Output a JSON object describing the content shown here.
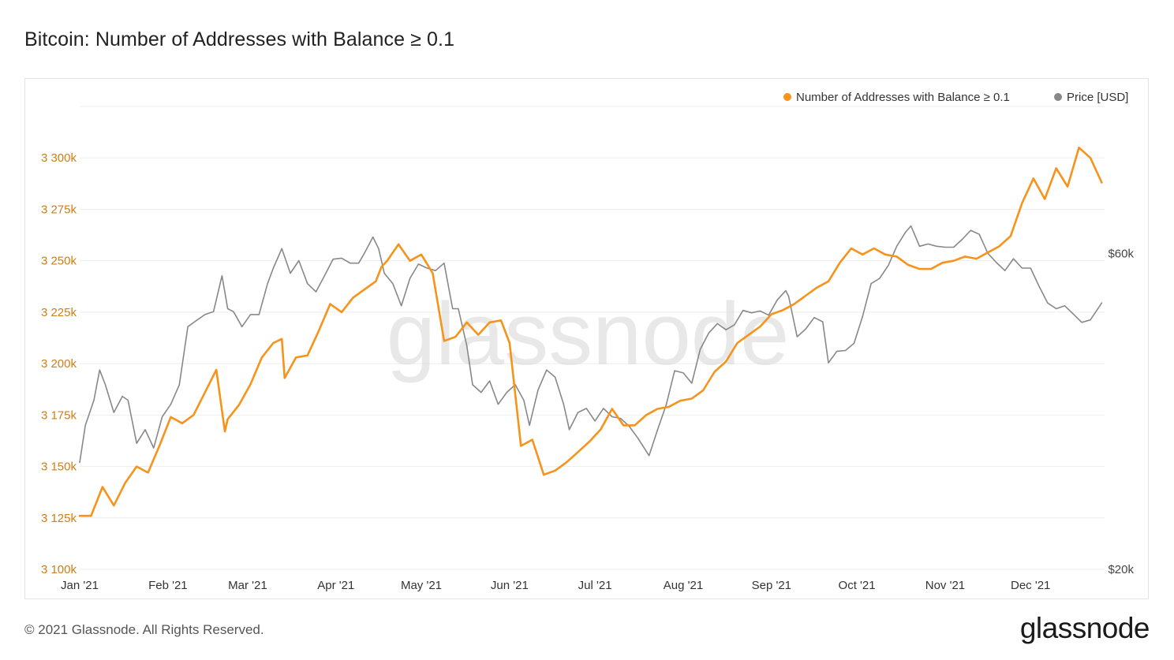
{
  "header": {
    "title": "Bitcoin: Number of Addresses with Balance ≥ 0.1"
  },
  "footer": {
    "copyright": "© 2021 Glassnode. All Rights Reserved.",
    "brand": "glassnode"
  },
  "watermark": "glassnode",
  "colors": {
    "addresses": "#f7931a",
    "price": "#888888",
    "left_axis_text": "#d07d14",
    "grid": "#eeeeee"
  },
  "chart_data": {
    "type": "line",
    "title": "Bitcoin: Number of Addresses with Balance ≥ 0.1",
    "x_ticks": [
      "Jan '21",
      "Feb '21",
      "Mar '21",
      "Apr '21",
      "May '21",
      "Jun '21",
      "Jul '21",
      "Aug '21",
      "Sep '21",
      "Oct '21",
      "Nov '21",
      "Dec '21"
    ],
    "x_range": [
      "2021-01-01",
      "2021-12-27"
    ],
    "left_axis": {
      "ticks": [
        "3 100k",
        "3 125k",
        "3 150k",
        "3 175k",
        "3 200k",
        "3 225k",
        "3 250k",
        "3 275k",
        "3 300k"
      ],
      "ylim": [
        3100000,
        3325000
      ]
    },
    "right_axis": {
      "scale": "log",
      "ticks": [
        "$20k",
        "$60k"
      ],
      "ylim": [
        20000,
        100000
      ]
    },
    "legend": {
      "placement": "top-right",
      "entries": [
        "Number of Addresses with Balance ≥ 0.1",
        "Price [USD]"
      ]
    },
    "series": [
      {
        "name": "Number of Addresses with Balance ≥ 0.1",
        "axis": "left",
        "x": [
          "2021-01-01",
          "2021-01-05",
          "2021-01-09",
          "2021-01-13",
          "2021-01-17",
          "2021-01-21",
          "2021-01-25",
          "2021-01-29",
          "2021-02-02",
          "2021-02-06",
          "2021-02-10",
          "2021-02-14",
          "2021-02-18",
          "2021-02-21",
          "2021-02-22",
          "2021-02-26",
          "2021-03-02",
          "2021-03-06",
          "2021-03-10",
          "2021-03-13",
          "2021-03-14",
          "2021-03-18",
          "2021-03-22",
          "2021-03-26",
          "2021-03-30",
          "2021-04-03",
          "2021-04-07",
          "2021-04-11",
          "2021-04-15",
          "2021-04-17",
          "2021-04-19",
          "2021-04-23",
          "2021-04-27",
          "2021-05-01",
          "2021-05-05",
          "2021-05-09",
          "2021-05-13",
          "2021-05-17",
          "2021-05-21",
          "2021-05-25",
          "2021-05-29",
          "2021-06-01",
          "2021-06-05",
          "2021-06-09",
          "2021-06-13",
          "2021-06-17",
          "2021-06-21",
          "2021-06-25",
          "2021-06-29",
          "2021-07-03",
          "2021-07-07",
          "2021-07-11",
          "2021-07-15",
          "2021-07-19",
          "2021-07-23",
          "2021-07-27",
          "2021-07-31",
          "2021-08-04",
          "2021-08-08",
          "2021-08-12",
          "2021-08-16",
          "2021-08-20",
          "2021-08-24",
          "2021-08-28",
          "2021-09-01",
          "2021-09-05",
          "2021-09-09",
          "2021-09-13",
          "2021-09-17",
          "2021-09-21",
          "2021-09-25",
          "2021-09-29",
          "2021-10-03",
          "2021-10-07",
          "2021-10-11",
          "2021-10-15",
          "2021-10-19",
          "2021-10-23",
          "2021-10-27",
          "2021-10-31",
          "2021-11-04",
          "2021-11-08",
          "2021-11-12",
          "2021-11-16",
          "2021-11-20",
          "2021-11-24",
          "2021-11-28",
          "2021-12-02",
          "2021-12-06",
          "2021-12-10",
          "2021-12-14",
          "2021-12-18",
          "2021-12-22",
          "2021-12-26"
        ],
        "values": [
          3126000,
          3126000,
          3140000,
          3131000,
          3142000,
          3150000,
          3147000,
          3160000,
          3174000,
          3171000,
          3175000,
          3186000,
          3197000,
          3167000,
          3173000,
          3180000,
          3190000,
          3203000,
          3210000,
          3212000,
          3193000,
          3203000,
          3204000,
          3216000,
          3229000,
          3225000,
          3232000,
          3236000,
          3240000,
          3247000,
          3250000,
          3258000,
          3250000,
          3253000,
          3244000,
          3211000,
          3213000,
          3220000,
          3214000,
          3220000,
          3221000,
          3210000,
          3160000,
          3163000,
          3146000,
          3148000,
          3152000,
          3157000,
          3162000,
          3168000,
          3178000,
          3170000,
          3170000,
          3175000,
          3178000,
          3179000,
          3182000,
          3183000,
          3187000,
          3196000,
          3201000,
          3210000,
          3214000,
          3218000,
          3224000,
          3226000,
          3229000,
          3233000,
          3237000,
          3240000,
          3249000,
          3256000,
          3253000,
          3256000,
          3253000,
          3252000,
          3248000,
          3246000,
          3246000,
          3249000,
          3250000,
          3252000,
          3251000,
          3254000,
          3257000,
          3262000,
          3278000,
          3290000,
          3280000,
          3295000,
          3286000,
          3305000,
          3300000,
          3288000
        ]
      },
      {
        "name": "Price [USD]",
        "axis": "right",
        "x": [
          "2021-01-01",
          "2021-01-03",
          "2021-01-06",
          "2021-01-08",
          "2021-01-10",
          "2021-01-13",
          "2021-01-16",
          "2021-01-18",
          "2021-01-21",
          "2021-01-24",
          "2021-01-27",
          "2021-01-30",
          "2021-02-02",
          "2021-02-05",
          "2021-02-08",
          "2021-02-11",
          "2021-02-14",
          "2021-02-17",
          "2021-02-20",
          "2021-02-22",
          "2021-02-24",
          "2021-02-27",
          "2021-03-02",
          "2021-03-05",
          "2021-03-08",
          "2021-03-10",
          "2021-03-13",
          "2021-03-16",
          "2021-03-19",
          "2021-03-22",
          "2021-03-25",
          "2021-03-28",
          "2021-03-31",
          "2021-04-03",
          "2021-04-06",
          "2021-04-09",
          "2021-04-11",
          "2021-04-14",
          "2021-04-16",
          "2021-04-18",
          "2021-04-21",
          "2021-04-24",
          "2021-04-27",
          "2021-04-30",
          "2021-05-03",
          "2021-05-06",
          "2021-05-09",
          "2021-05-12",
          "2021-05-14",
          "2021-05-17",
          "2021-05-19",
          "2021-05-22",
          "2021-05-25",
          "2021-05-28",
          "2021-05-31",
          "2021-06-03",
          "2021-06-06",
          "2021-06-08",
          "2021-06-11",
          "2021-06-14",
          "2021-06-17",
          "2021-06-20",
          "2021-06-22",
          "2021-06-25",
          "2021-06-28",
          "2021-07-01",
          "2021-07-04",
          "2021-07-07",
          "2021-07-10",
          "2021-07-13",
          "2021-07-16",
          "2021-07-20",
          "2021-07-23",
          "2021-07-26",
          "2021-07-29",
          "2021-08-01",
          "2021-08-04",
          "2021-08-07",
          "2021-08-10",
          "2021-08-13",
          "2021-08-16",
          "2021-08-19",
          "2021-08-22",
          "2021-08-25",
          "2021-08-28",
          "2021-08-31",
          "2021-09-03",
          "2021-09-06",
          "2021-09-07",
          "2021-09-10",
          "2021-09-13",
          "2021-09-16",
          "2021-09-19",
          "2021-09-21",
          "2021-09-24",
          "2021-09-27",
          "2021-09-30",
          "2021-10-03",
          "2021-10-06",
          "2021-10-09",
          "2021-10-12",
          "2021-10-15",
          "2021-10-18",
          "2021-10-20",
          "2021-10-23",
          "2021-10-26",
          "2021-10-29",
          "2021-11-01",
          "2021-11-04",
          "2021-11-07",
          "2021-11-10",
          "2021-11-13",
          "2021-11-16",
          "2021-11-19",
          "2021-11-22",
          "2021-11-25",
          "2021-11-28",
          "2021-12-01",
          "2021-12-04",
          "2021-12-07",
          "2021-12-10",
          "2021-12-13",
          "2021-12-16",
          "2021-12-19",
          "2021-12-22",
          "2021-12-26"
        ],
        "values": [
          29000,
          33000,
          36000,
          40000,
          38000,
          34500,
          36500,
          36000,
          31000,
          32500,
          30500,
          34000,
          35500,
          38000,
          46500,
          47500,
          48500,
          49000,
          55500,
          49500,
          49000,
          46500,
          48500,
          48500,
          54000,
          57000,
          61000,
          56000,
          58500,
          54000,
          52500,
          55500,
          58800,
          59000,
          58000,
          58000,
          60000,
          63500,
          61000,
          56000,
          54000,
          50000,
          55000,
          57800,
          57000,
          56500,
          58000,
          49500,
          49500,
          43500,
          38000,
          37000,
          38500,
          35500,
          37000,
          38000,
          36000,
          33000,
          37300,
          40000,
          39000,
          35500,
          32500,
          34500,
          35000,
          33500,
          35000,
          34000,
          33800,
          32900,
          31600,
          29700,
          32500,
          35400,
          39900,
          39600,
          38200,
          43000,
          45500,
          47000,
          46000,
          46800,
          49200,
          48800,
          49100,
          48400,
          51000,
          52700,
          51700,
          44900,
          46100,
          48000,
          47300,
          41000,
          42700,
          42800,
          43900,
          48200,
          54000,
          55000,
          57500,
          61500,
          64500,
          66000,
          61500,
          62000,
          61500,
          61300,
          61300,
          63000,
          65000,
          64100,
          60000,
          58100,
          56500,
          58900,
          57000,
          57000,
          53500,
          50500,
          49500,
          50000,
          48600,
          47200,
          47600,
          50500
        ]
      }
    ]
  }
}
